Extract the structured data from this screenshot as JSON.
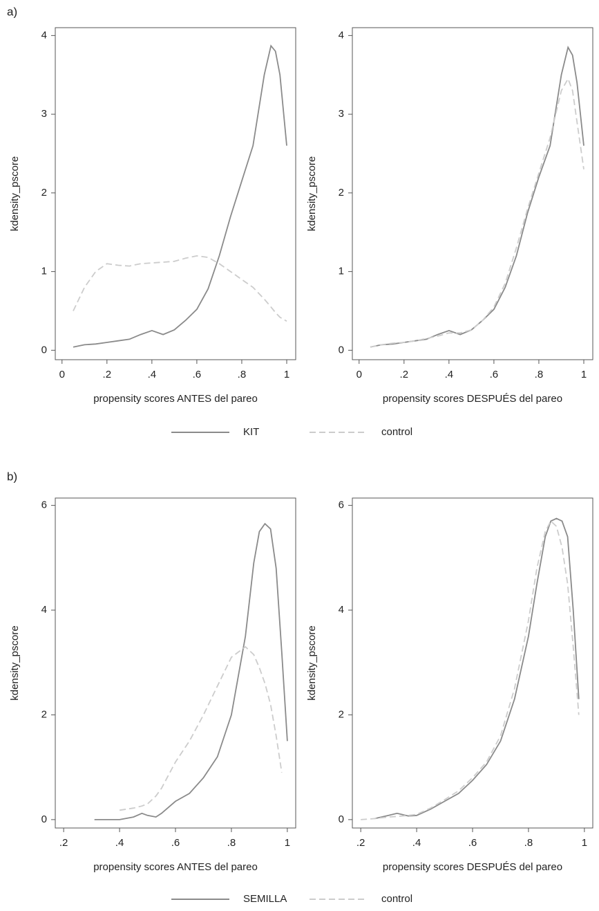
{
  "chart_data": [
    {
      "type": "line",
      "label": "a)",
      "xlabel": "propensity scores ANTES del pareo",
      "ylabel": "kdensity_pscore",
      "x": [
        0.05,
        0.1,
        0.15,
        0.2,
        0.25,
        0.3,
        0.35,
        0.4,
        0.45,
        0.5,
        0.55,
        0.6,
        0.65,
        0.7,
        0.75,
        0.8,
        0.85,
        0.9,
        0.93,
        0.95,
        0.97,
        1.0
      ],
      "series": [
        {
          "name": "KIT",
          "color": "#8a8a8a",
          "dashed": false,
          "values": [
            0.04,
            0.07,
            0.08,
            0.1,
            0.12,
            0.14,
            0.2,
            0.25,
            0.2,
            0.26,
            0.38,
            0.52,
            0.78,
            1.2,
            1.7,
            2.15,
            2.6,
            3.5,
            3.87,
            3.8,
            3.5,
            2.6
          ]
        },
        {
          "name": "control",
          "color": "#cccccc",
          "dashed": true,
          "values": [
            0.5,
            0.8,
            1.0,
            1.1,
            1.08,
            1.07,
            1.1,
            1.11,
            1.12,
            1.13,
            1.17,
            1.2,
            1.18,
            1.1,
            1.0,
            0.9,
            0.8,
            0.65,
            0.55,
            0.48,
            0.42,
            0.37
          ]
        }
      ],
      "xlim": [
        -0.03,
        1.04
      ],
      "ylim": [
        -0.12,
        4.1
      ],
      "xticks": [
        0,
        {
          "value": 0.2,
          "label": ".2"
        },
        {
          "value": 0.4,
          "label": ".4"
        },
        {
          "value": 0.6,
          "label": ".6"
        },
        {
          "value": 0.8,
          "label": ".8"
        },
        1
      ],
      "yticks": [
        0,
        1,
        2,
        3,
        4
      ]
    },
    {
      "type": "line",
      "xlabel": "propensity scores DESPUÉS del pareo",
      "ylabel": "kdensity_pscore",
      "x": [
        0.05,
        0.1,
        0.15,
        0.2,
        0.25,
        0.3,
        0.35,
        0.4,
        0.45,
        0.5,
        0.55,
        0.6,
        0.65,
        0.7,
        0.75,
        0.8,
        0.85,
        0.9,
        0.93,
        0.95,
        0.97,
        1.0
      ],
      "series": [
        {
          "name": "KIT",
          "color": "#8a8a8a",
          "dashed": false,
          "values": [
            0.04,
            0.07,
            0.08,
            0.1,
            0.12,
            0.14,
            0.2,
            0.25,
            0.2,
            0.26,
            0.38,
            0.52,
            0.8,
            1.2,
            1.75,
            2.2,
            2.6,
            3.5,
            3.85,
            3.75,
            3.4,
            2.6
          ]
        },
        {
          "name": "control",
          "color": "#cccccc",
          "dashed": true,
          "values": [
            0.04,
            0.07,
            0.09,
            0.1,
            0.12,
            0.15,
            0.18,
            0.22,
            0.22,
            0.26,
            0.38,
            0.55,
            0.85,
            1.3,
            1.8,
            2.25,
            2.7,
            3.3,
            3.45,
            3.3,
            2.9,
            2.3
          ]
        }
      ],
      "xlim": [
        -0.03,
        1.04
      ],
      "ylim": [
        -0.12,
        4.1
      ],
      "xticks": [
        0,
        {
          "value": 0.2,
          "label": ".2"
        },
        {
          "value": 0.4,
          "label": ".4"
        },
        {
          "value": 0.6,
          "label": ".6"
        },
        {
          "value": 0.8,
          "label": ".8"
        },
        1
      ],
      "yticks": [
        0,
        1,
        2,
        3,
        4
      ]
    },
    {
      "type": "line",
      "label": "b)",
      "xlabel": "propensity scores ANTES del pareo",
      "ylabel": "kdensity_pscore",
      "x": [
        0.31,
        0.35,
        0.4,
        0.45,
        0.48,
        0.5,
        0.53,
        0.55,
        0.6,
        0.65,
        0.7,
        0.75,
        0.8,
        0.85,
        0.88,
        0.9,
        0.92,
        0.94,
        0.96,
        0.98,
        1.0
      ],
      "series": [
        {
          "name": "SEMILLA",
          "color": "#8a8a8a",
          "dashed": false,
          "values": [
            0.0,
            0.0,
            0.0,
            0.05,
            0.12,
            0.08,
            0.05,
            0.12,
            0.35,
            0.5,
            0.8,
            1.2,
            2.0,
            3.5,
            4.9,
            5.5,
            5.65,
            5.55,
            4.8,
            3.2,
            1.5
          ]
        },
        {
          "name": "control",
          "color": "#cccccc",
          "dashed": true,
          "values": [
            null,
            null,
            0.18,
            0.22,
            0.26,
            0.3,
            0.45,
            0.6,
            1.1,
            1.5,
            2.0,
            2.55,
            3.1,
            3.3,
            3.15,
            2.9,
            2.6,
            2.2,
            1.6,
            0.9,
            null
          ]
        }
      ],
      "xlim": [
        0.17,
        1.03
      ],
      "ylim": [
        -0.16,
        6.14
      ],
      "xticks": [
        {
          "value": 0.2,
          "label": ".2"
        },
        {
          "value": 0.4,
          "label": ".4"
        },
        {
          "value": 0.6,
          "label": ".6"
        },
        {
          "value": 0.8,
          "label": ".8"
        },
        1
      ],
      "yticks": [
        0,
        2,
        4,
        6
      ]
    },
    {
      "type": "line",
      "xlabel": "propensity scores DESPUÉS del pareo",
      "ylabel": "kdensity_pscore",
      "x": [
        0.2,
        0.25,
        0.3,
        0.33,
        0.37,
        0.4,
        0.45,
        0.5,
        0.55,
        0.6,
        0.65,
        0.7,
        0.75,
        0.8,
        0.83,
        0.86,
        0.88,
        0.9,
        0.92,
        0.94,
        0.96,
        0.98
      ],
      "series": [
        {
          "name": "SEMILLA",
          "color": "#8a8a8a",
          "dashed": false,
          "values": [
            null,
            0.02,
            0.08,
            0.12,
            0.07,
            0.08,
            0.2,
            0.35,
            0.5,
            0.75,
            1.05,
            1.5,
            2.3,
            3.5,
            4.5,
            5.4,
            5.7,
            5.75,
            5.7,
            5.4,
            4.0,
            2.3
          ]
        },
        {
          "name": "control",
          "color": "#cccccc",
          "dashed": true,
          "values": [
            0.0,
            0.02,
            0.05,
            0.06,
            0.08,
            0.1,
            0.22,
            0.38,
            0.55,
            0.8,
            1.1,
            1.6,
            2.5,
            3.8,
            4.8,
            5.5,
            5.7,
            5.6,
            5.2,
            4.5,
            3.3,
            2.0
          ]
        }
      ],
      "xlim": [
        0.17,
        1.03
      ],
      "ylim": [
        -0.16,
        6.14
      ],
      "xticks": [
        {
          "value": 0.2,
          "label": ".2"
        },
        {
          "value": 0.4,
          "label": ".4"
        },
        {
          "value": 0.6,
          "label": ".6"
        },
        {
          "value": 0.8,
          "label": ".8"
        },
        1
      ],
      "yticks": [
        0,
        2,
        4,
        6
      ]
    }
  ]
}
